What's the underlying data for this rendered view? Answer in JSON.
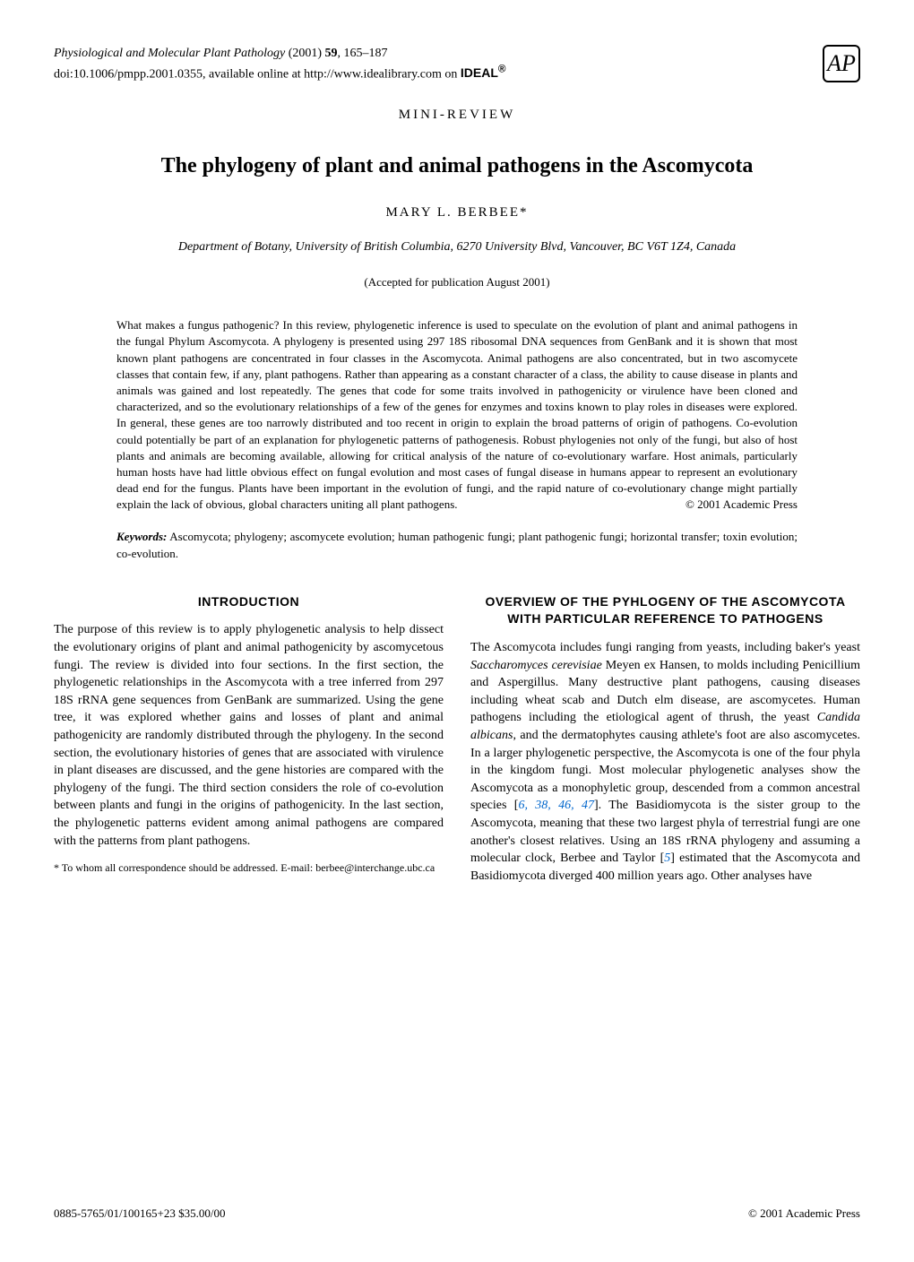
{
  "header": {
    "journal_name": "Physiological and Molecular Plant Pathology",
    "year": "(2001)",
    "volume": "59",
    "pages": "165–187",
    "doi_prefix": "doi:10.1006/pmpp.2001.0355, available online at http://www.idealibrary.com on",
    "ideal_logo": "IDEAL",
    "ideal_reg": "®",
    "ap_logo": "AP"
  },
  "mini_review": "MINI-REVIEW",
  "title": "The phylogeny of plant and animal pathogens in the Ascomycota",
  "author": "MARY L. BERBEE*",
  "affiliation": "Department of Botany, University of British Columbia, 6270 University Blvd, Vancouver, BC V6T 1Z4, Canada",
  "accepted": "(Accepted for publication August 2001)",
  "abstract": "What makes a fungus pathogenic? In this review, phylogenetic inference is used to speculate on the evolution of plant and animal pathogens in the fungal Phylum Ascomycota. A phylogeny is presented using 297 18S ribosomal DNA sequences from GenBank and it is shown that most known plant pathogens are concentrated in four classes in the Ascomycota. Animal pathogens are also concentrated, but in two ascomycete classes that contain few, if any, plant pathogens. Rather than appearing as a constant character of a class, the ability to cause disease in plants and animals was gained and lost repeatedly. The genes that code for some traits involved in pathogenicity or virulence have been cloned and characterized, and so the evolutionary relationships of a few of the genes for enzymes and toxins known to play roles in diseases were explored. In general, these genes are too narrowly distributed and too recent in origin to explain the broad patterns of origin of pathogens. Co-evolution could potentially be part of an explanation for phylogenetic patterns of pathogenesis. Robust phylogenies not only of the fungi, but also of host plants and animals are becoming available, allowing for critical analysis of the nature of co-evolutionary warfare. Host animals, particularly human hosts have had little obvious effect on fungal evolution and most cases of fungal disease in humans appear to represent an evolutionary dead end for the fungus. Plants have been important in the evolution of fungi, and the rapid nature of co-evolutionary change might partially explain the lack of obvious, global characters uniting all plant pathogens.",
  "copyright_inline": "© 2001 Academic Press",
  "keywords_label": "Keywords:",
  "keywords": " Ascomycota; phylogeny; ascomycete evolution; human pathogenic fungi; plant pathogenic fungi; horizontal transfer; toxin evolution; co-evolution.",
  "left_column": {
    "heading": "INTRODUCTION",
    "para1": "The purpose of this review is to apply phylogenetic analysis to help dissect the evolutionary origins of plant and animal pathogenicity by ascomycetous fungi. The review is divided into four sections. In the first section, the phylogenetic relationships in the Ascomycota with a tree inferred from 297 18S rRNA gene sequences from GenBank are summarized. Using the gene tree, it was explored whether gains and losses of plant and animal pathogenicity are randomly distributed through the phylogeny. In the second section, the evolutionary histories of genes that are associated with virulence in plant diseases are discussed, and the gene histories are compared with the phylogeny of the fungi. The third section considers the role of co-evolution between plants and fungi in the origins of pathogenicity. In the last section, the phylogenetic patterns evident among animal pathogens are compared with the patterns from plant pathogens.",
    "footnote": "* To whom all correspondence should be addressed. E-mail: berbee@interchange.ubc.ca"
  },
  "right_column": {
    "heading": "OVERVIEW OF THE PYHLOGENY OF THE ASCOMYCOTA WITH PARTICULAR REFERENCE TO PATHOGENS",
    "para1_part1": "The Ascomycota includes fungi ranging from yeasts, including baker's yeast ",
    "para1_italic1": "Saccharomyces cerevisiae",
    "para1_part2": " Meyen ex Hansen, to molds including Penicillium and Aspergillus. Many destructive plant pathogens, causing diseases including wheat scab and Dutch elm disease, are ascomycetes. Human pathogens including the etiological agent of thrush, the yeast ",
    "para1_italic2": "Candida albicans",
    "para1_part3": ", and the dermatophytes causing athlete's foot are also ascomycetes. In a larger phylogenetic perspective, the Ascomycota is one of the four phyla in the kingdom fungi. Most molecular phylogenetic analyses show the Ascomycota as a monophyletic group, descended from a common ancestral species [",
    "refs1": "6, 38, 46, 47",
    "para1_part4": "]. The Basidiomycota is the sister group to the Ascomycota, meaning that these two largest phyla of terrestrial fungi are one another's closest relatives. Using an 18S rRNA phylogeny and assuming a molecular clock, Berbee and Taylor [",
    "refs2": "5",
    "para1_part5": "] estimated that the Ascomycota and Basidiomycota diverged 400 million years ago. Other analyses have"
  },
  "footer": {
    "left": "0885-5765/01/100165+23 $35.00/00",
    "right": "© 2001 Academic Press"
  }
}
